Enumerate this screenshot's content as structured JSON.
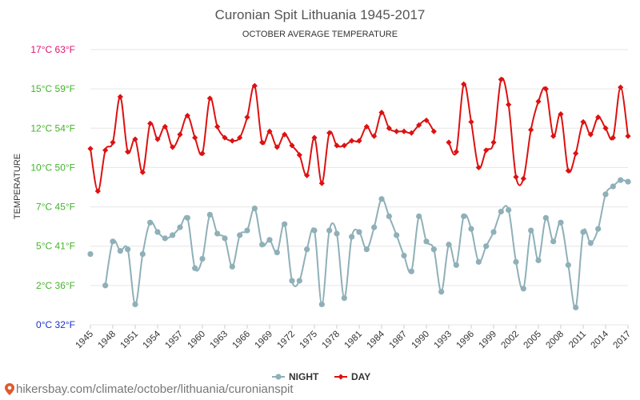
{
  "chart_data": {
    "type": "line",
    "title": "Curonian Spit Lithuania 1945-2017",
    "subtitle": "OCTOBER AVERAGE TEMPERATURE",
    "ylabel": "TEMPERATURE",
    "xlabel": "",
    "ylim": [
      0,
      17.5
    ],
    "x_start": 1945,
    "x_end": 2017,
    "y_ticks": [
      {
        "value": 0,
        "label": "0°C 32°F",
        "color": "#1a2fcc"
      },
      {
        "value": 2.5,
        "label": "2°C 36°F",
        "color": "#44b32c"
      },
      {
        "value": 5,
        "label": "5°C 41°F",
        "color": "#44b32c"
      },
      {
        "value": 7.5,
        "label": "7°C 45°F",
        "color": "#44b32c"
      },
      {
        "value": 10,
        "label": "10°C 50°F",
        "color": "#44b32c"
      },
      {
        "value": 12.5,
        "label": "12°C 54°F",
        "color": "#44b32c"
      },
      {
        "value": 15,
        "label": "15°C 59°F",
        "color": "#44b32c"
      },
      {
        "value": 17.5,
        "label": "17°C 63°F",
        "color": "#e0116f"
      }
    ],
    "x_tick_labels": [
      "1945",
      "1948",
      "1951",
      "1954",
      "1957",
      "1960",
      "1963",
      "1966",
      "1969",
      "1972",
      "1975",
      "1978",
      "1981",
      "1984",
      "1987",
      "1990",
      "1993",
      "1996",
      "1999",
      "2002",
      "2005",
      "2008",
      "2011",
      "2014",
      "2017"
    ],
    "series": [
      {
        "name": "NIGHT",
        "color": "#8fb0b8",
        "values": [
          4.5,
          null,
          2.5,
          5.3,
          4.7,
          4.8,
          1.3,
          4.5,
          6.5,
          5.9,
          5.5,
          5.7,
          6.2,
          6.8,
          3.6,
          4.2,
          7.0,
          5.8,
          5.5,
          3.7,
          5.7,
          6.0,
          7.4,
          5.1,
          5.4,
          4.6,
          6.4,
          2.8,
          2.8,
          4.8,
          6.0,
          1.3,
          6.0,
          5.8,
          1.7,
          5.6,
          5.9,
          4.8,
          6.2,
          8.0,
          6.9,
          5.7,
          4.4,
          3.4,
          6.9,
          5.3,
          4.8,
          2.1,
          5.1,
          3.8,
          6.9,
          6.1,
          4.0,
          5.0,
          5.9,
          7.2,
          7.3,
          4.0,
          2.3,
          6.0,
          4.1,
          6.8,
          5.3,
          6.5,
          3.8,
          1.1,
          5.9,
          5.2,
          6.1,
          8.3,
          8.8,
          9.2,
          9.1
        ]
      },
      {
        "name": "DAY",
        "color": "#dd1111",
        "values": [
          11.2,
          8.5,
          11.1,
          11.6,
          14.5,
          11.0,
          11.8,
          9.7,
          12.8,
          11.8,
          12.6,
          11.3,
          12.1,
          13.3,
          11.9,
          10.9,
          14.4,
          12.6,
          11.9,
          11.7,
          11.9,
          13.2,
          15.2,
          11.6,
          12.3,
          11.3,
          12.1,
          11.4,
          10.8,
          9.5,
          11.9,
          9.0,
          12.2,
          11.4,
          11.4,
          11.7,
          11.7,
          12.6,
          12.0,
          13.5,
          12.5,
          12.3,
          12.3,
          12.2,
          12.7,
          13.0,
          12.3,
          null,
          11.6,
          11.0,
          15.3,
          12.9,
          10.0,
          11.1,
          11.6,
          15.6,
          14.0,
          9.4,
          9.3,
          12.4,
          14.2,
          15.0,
          12.0,
          13.4,
          9.8,
          10.9,
          12.9,
          12.1,
          13.2,
          12.5,
          11.9,
          15.1,
          12.0
        ]
      }
    ],
    "legend": [
      {
        "name": "NIGHT",
        "color": "#8fb0b8"
      },
      {
        "name": "DAY",
        "color": "#dd1111"
      }
    ],
    "grid": true
  },
  "watermark": {
    "text": "hikersbay.com/climate/october/lithuania/curonianspit"
  }
}
